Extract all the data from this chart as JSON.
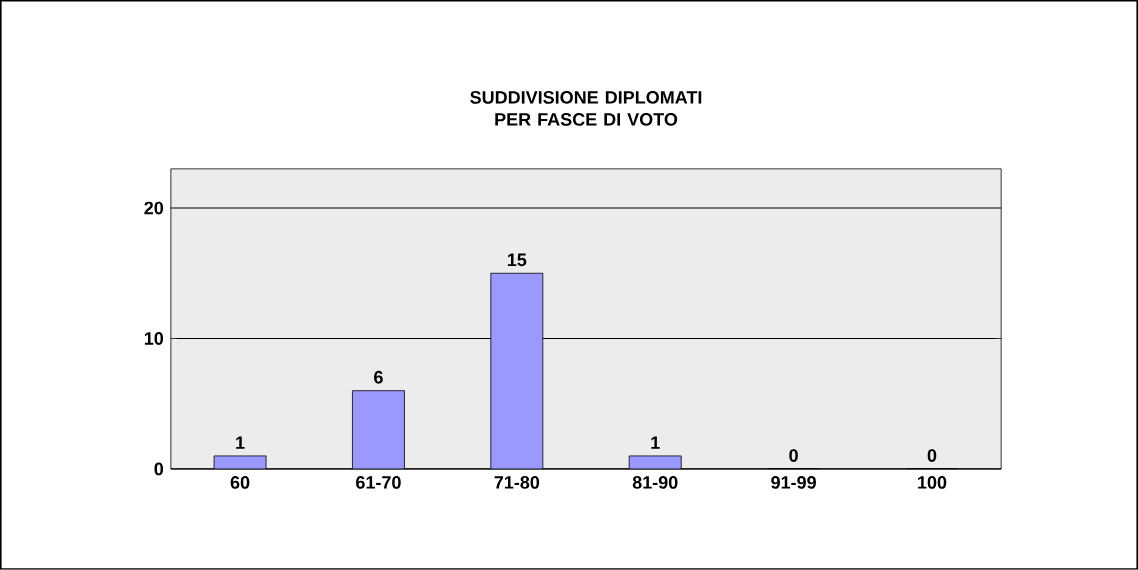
{
  "chart_data": {
    "type": "bar",
    "title": "SUDDIVISIONE DIPLOMATI PER FASCE DI VOTO",
    "categories": [
      "60",
      "61-70",
      "71-80",
      "81-90",
      "91-99",
      "100"
    ],
    "values": [
      1,
      6,
      15,
      1,
      0,
      0
    ],
    "color": "#9999ff",
    "ylim": [
      0,
      23
    ],
    "yticks": [
      0,
      10,
      20
    ],
    "grid": "y",
    "data_labels": true
  }
}
